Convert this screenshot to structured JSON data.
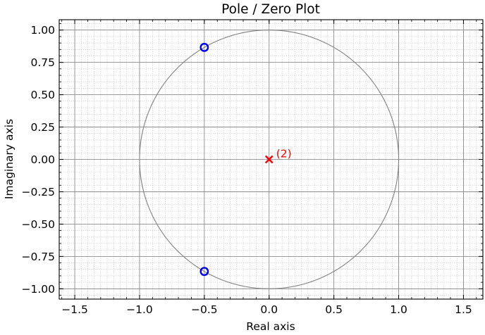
{
  "chart_data": {
    "type": "scatter",
    "title": "Pole / Zero Plot",
    "xlabel": "Real axis",
    "ylabel": "Imaginary axis",
    "xlim": [
      -1.62,
      1.65
    ],
    "ylim": [
      -1.08,
      1.08
    ],
    "xticks": [
      -1.5,
      -1.0,
      -0.5,
      0.0,
      0.5,
      1.0,
      1.5
    ],
    "xtick_labels": [
      "−1.5",
      "−1.0",
      "−0.5",
      "0.0",
      "0.5",
      "1.0",
      "1.5"
    ],
    "yticks": [
      1.0,
      0.75,
      0.5,
      0.25,
      0.0,
      -0.25,
      -0.5,
      -0.75,
      -1.0
    ],
    "ytick_labels": [
      "1.00",
      "0.75",
      "0.50",
      "0.25",
      "0.00",
      "−0.25",
      "−0.50",
      "−0.75",
      "−1.00"
    ],
    "grid": true,
    "unit_circle": {
      "radius": 1.0,
      "color": "#808080"
    },
    "series": [
      {
        "kind": "zeros",
        "marker": "circle",
        "color": "#0000ff",
        "points": [
          {
            "x": -0.5,
            "y": 0.866
          },
          {
            "x": -0.5,
            "y": -0.866
          }
        ]
      },
      {
        "kind": "poles",
        "marker": "x",
        "color": "#ff0000",
        "points": [
          {
            "x": 0.0,
            "y": 0.0
          }
        ]
      }
    ],
    "annotations": [
      {
        "text": "(2)",
        "x": 0.0,
        "y": 0.0,
        "color": "#ff0000"
      }
    ]
  }
}
